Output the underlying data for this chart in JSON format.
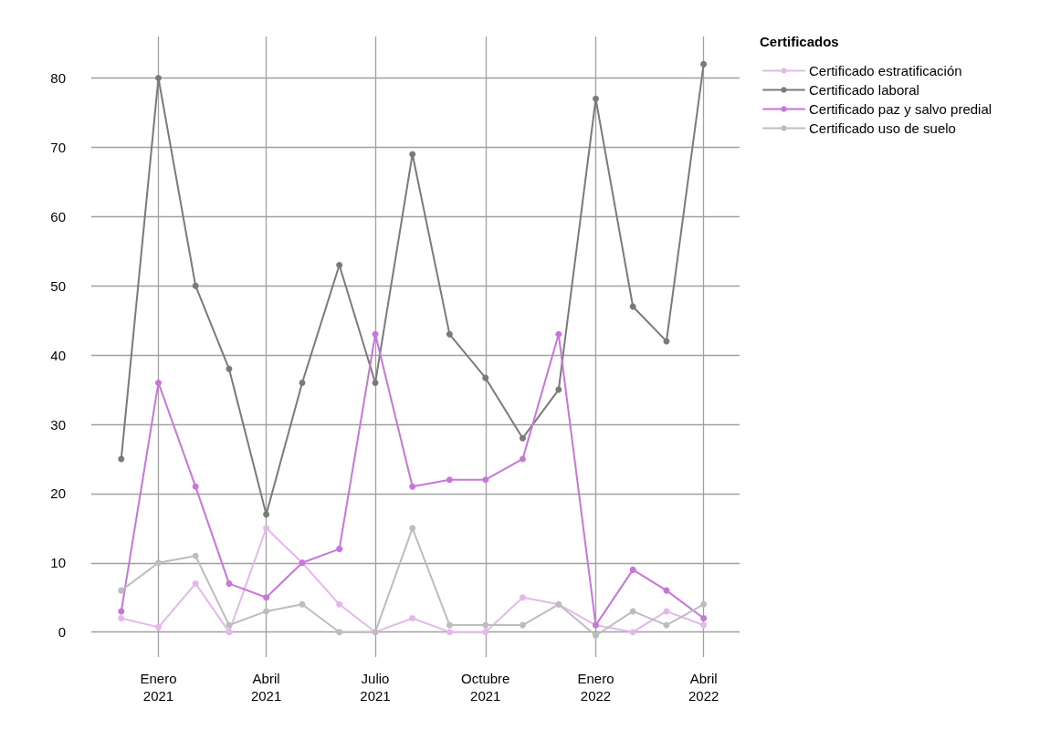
{
  "chart_data": {
    "type": "line",
    "legend_title": "Certificados",
    "x": [
      "2020-12",
      "2021-01",
      "2021-02",
      "2021-03",
      "2021-04",
      "2021-05",
      "2021-06",
      "2021-07",
      "2021-08",
      "2021-09",
      "2021-10",
      "2021-11",
      "2021-12",
      "2022-01",
      "2022-02",
      "2022-03",
      "2022-04"
    ],
    "series": [
      {
        "name": "Certificado estratificación",
        "color": "#e5b8ec",
        "values": [
          2,
          0.7,
          7,
          0,
          15,
          10,
          4,
          0,
          2,
          0,
          0,
          5,
          4,
          1,
          0,
          3,
          1
        ]
      },
      {
        "name": "Certificado laboral",
        "color": "#7a7a7a",
        "values": [
          25,
          80,
          50,
          38,
          17,
          36,
          53,
          36,
          69,
          43,
          36.7,
          28,
          35,
          77,
          47,
          42,
          82
        ]
      },
      {
        "name": "Certificado paz y salvo predial",
        "color": "#c875dc",
        "values": [
          3,
          36,
          21,
          7,
          5,
          10,
          12,
          43,
          21,
          22,
          22,
          25,
          43,
          1,
          9,
          6,
          2
        ]
      },
      {
        "name": "Certificado uso de suelo",
        "color": "#bdbdbd",
        "values": [
          6,
          10,
          11,
          1,
          3,
          4,
          0,
          0,
          15,
          1,
          1,
          1,
          4,
          -0.5,
          3,
          1,
          4
        ]
      }
    ],
    "xlim": [
      "2020-11-06",
      "2022-05-01"
    ],
    "xticks": [
      {
        "value": "2021-01",
        "label": "Enero\n2021"
      },
      {
        "value": "2021-04",
        "label": "Abril\n2021"
      },
      {
        "value": "2021-07",
        "label": "Julio\n2021"
      },
      {
        "value": "2021-10",
        "label": "Octubre\n2021"
      },
      {
        "value": "2022-01",
        "label": "Enero\n2022"
      },
      {
        "value": "2022-04",
        "label": "Abril\n2022"
      }
    ],
    "ylim": [
      -3.6,
      86
    ],
    "yticks": [
      0,
      10,
      20,
      30,
      40,
      50,
      60,
      70,
      80
    ],
    "grid": true,
    "legend": "top right",
    "marker": "circle",
    "line_style": "solid"
  }
}
